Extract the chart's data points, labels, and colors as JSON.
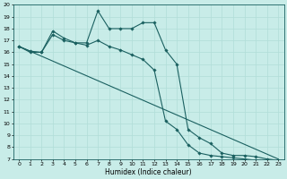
{
  "xlabel": "Humidex (Indice chaleur)",
  "bg_color": "#c8ece8",
  "grid_color": "#b0ddd8",
  "line_color": "#1a6060",
  "xlim": [
    -0.5,
    23.5
  ],
  "ylim": [
    7,
    20
  ],
  "xticks": [
    0,
    1,
    2,
    3,
    4,
    5,
    6,
    7,
    8,
    9,
    10,
    11,
    12,
    13,
    14,
    15,
    16,
    17,
    18,
    19,
    20,
    21,
    22,
    23
  ],
  "yticks": [
    7,
    8,
    9,
    10,
    11,
    12,
    13,
    14,
    15,
    16,
    17,
    18,
    19,
    20
  ],
  "line1_x": [
    0,
    1,
    2,
    3,
    4,
    5,
    6,
    7,
    8,
    9,
    10,
    11,
    12,
    13,
    14,
    15,
    16,
    17,
    18,
    19,
    20,
    21,
    22,
    23
  ],
  "line1_y": [
    16.5,
    16.0,
    16.0,
    17.5,
    17.0,
    16.8,
    16.8,
    19.5,
    18.0,
    18.0,
    18.0,
    18.5,
    18.5,
    16.2,
    15.0,
    9.5,
    8.8,
    8.3,
    7.5,
    7.3,
    7.3,
    7.2,
    7.0,
    6.9
  ],
  "line2_x": [
    0,
    1,
    2,
    3,
    4,
    5,
    6,
    7,
    8,
    9,
    10,
    11,
    12,
    13,
    14,
    15,
    16,
    17,
    18,
    19,
    20,
    21,
    22,
    23
  ],
  "line2_y": [
    16.5,
    16.1,
    16.0,
    17.8,
    17.2,
    16.8,
    16.6,
    17.0,
    16.5,
    16.2,
    15.8,
    15.4,
    14.5,
    10.2,
    9.5,
    8.2,
    7.5,
    7.3,
    7.2,
    7.1,
    7.0,
    6.9,
    6.8,
    6.8
  ],
  "line3_x": [
    0,
    23
  ],
  "line3_y": [
    16.5,
    7.0
  ],
  "tick_fontsize": 4.5,
  "xlabel_fontsize": 5.5,
  "marker_size": 1.8,
  "line_width": 0.8
}
